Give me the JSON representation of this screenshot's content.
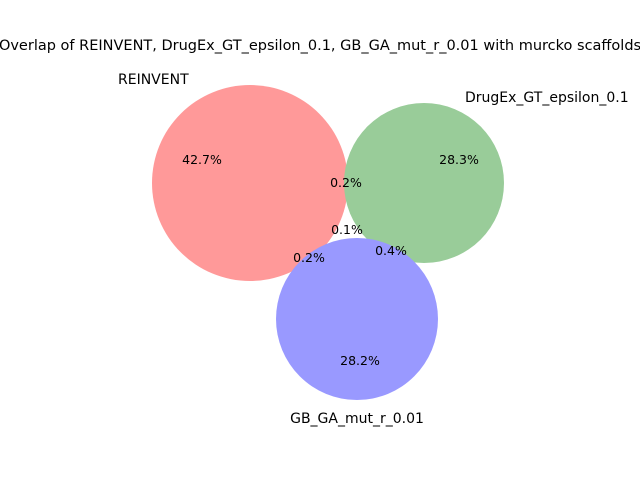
{
  "title": "Overlap of REINVENT, DrugEx_GT_epsilon_0.1, GB_GA_mut_r_0.01 with murcko scaffolds",
  "sets": [
    {
      "name": "REINVENT",
      "color": "#ff9999"
    },
    {
      "name": "DrugEx_GT_epsilon_0.1",
      "color": "#99cc99"
    },
    {
      "name": "GB_GA_mut_r_0.01",
      "color": "#9999ff"
    }
  ],
  "regions": {
    "only_a": "42.7%",
    "only_b": "28.3%",
    "only_c": "28.2%",
    "a_b": "0.2%",
    "a_c": "0.2%",
    "b_c": "0.4%",
    "a_b_c": "0.1%"
  }
}
